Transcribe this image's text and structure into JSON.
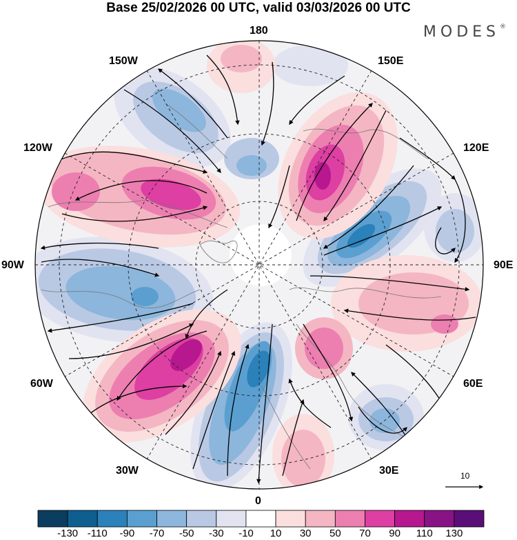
{
  "title": "Base 25/02/2026 00 UTC, valid 03/03/2026 00 UTC",
  "brand": "MODES",
  "brand_mark": "®",
  "longitude_labels": {
    "top": "180",
    "top_left": "150W",
    "top_right": "150E",
    "upper_left": "120W",
    "upper_right": "120E",
    "left": "90W",
    "right": "90E",
    "lower_left": "60W",
    "lower_right": "60E",
    "bottom_left": "30W",
    "bottom_right": "30E",
    "bottom": "0"
  },
  "vector_scale_label": "10",
  "colorbar": {
    "levels": [
      "-130",
      "-110",
      "-90",
      "-70",
      "-50",
      "-30",
      "-10",
      "10",
      "30",
      "50",
      "70",
      "90",
      "110",
      "130"
    ],
    "colors": [
      "#0b3d5e",
      "#0e5f8f",
      "#2b81ba",
      "#5a9fd0",
      "#8cb6dc",
      "#b9c9e4",
      "#e1e3f1",
      "#ffffff",
      "#fbdede",
      "#f4b6c3",
      "#ec7fb0",
      "#dd3fa2",
      "#b7178f",
      "#871384",
      "#5a0f78"
    ]
  },
  "map_data": {
    "projection": "north-polar-stereographic",
    "anomaly_colors": {
      "pos1": "#fbdede",
      "pos2": "#f4b6c3",
      "pos3": "#ec7fb0",
      "pos4": "#dd3fa2",
      "pos5": "#b7178f",
      "neg1": "#e1e3f1",
      "neg2": "#b9c9e4",
      "neg3": "#8cb6dc",
      "neg4": "#5a9fd0",
      "neg5": "#2b81ba"
    }
  }
}
